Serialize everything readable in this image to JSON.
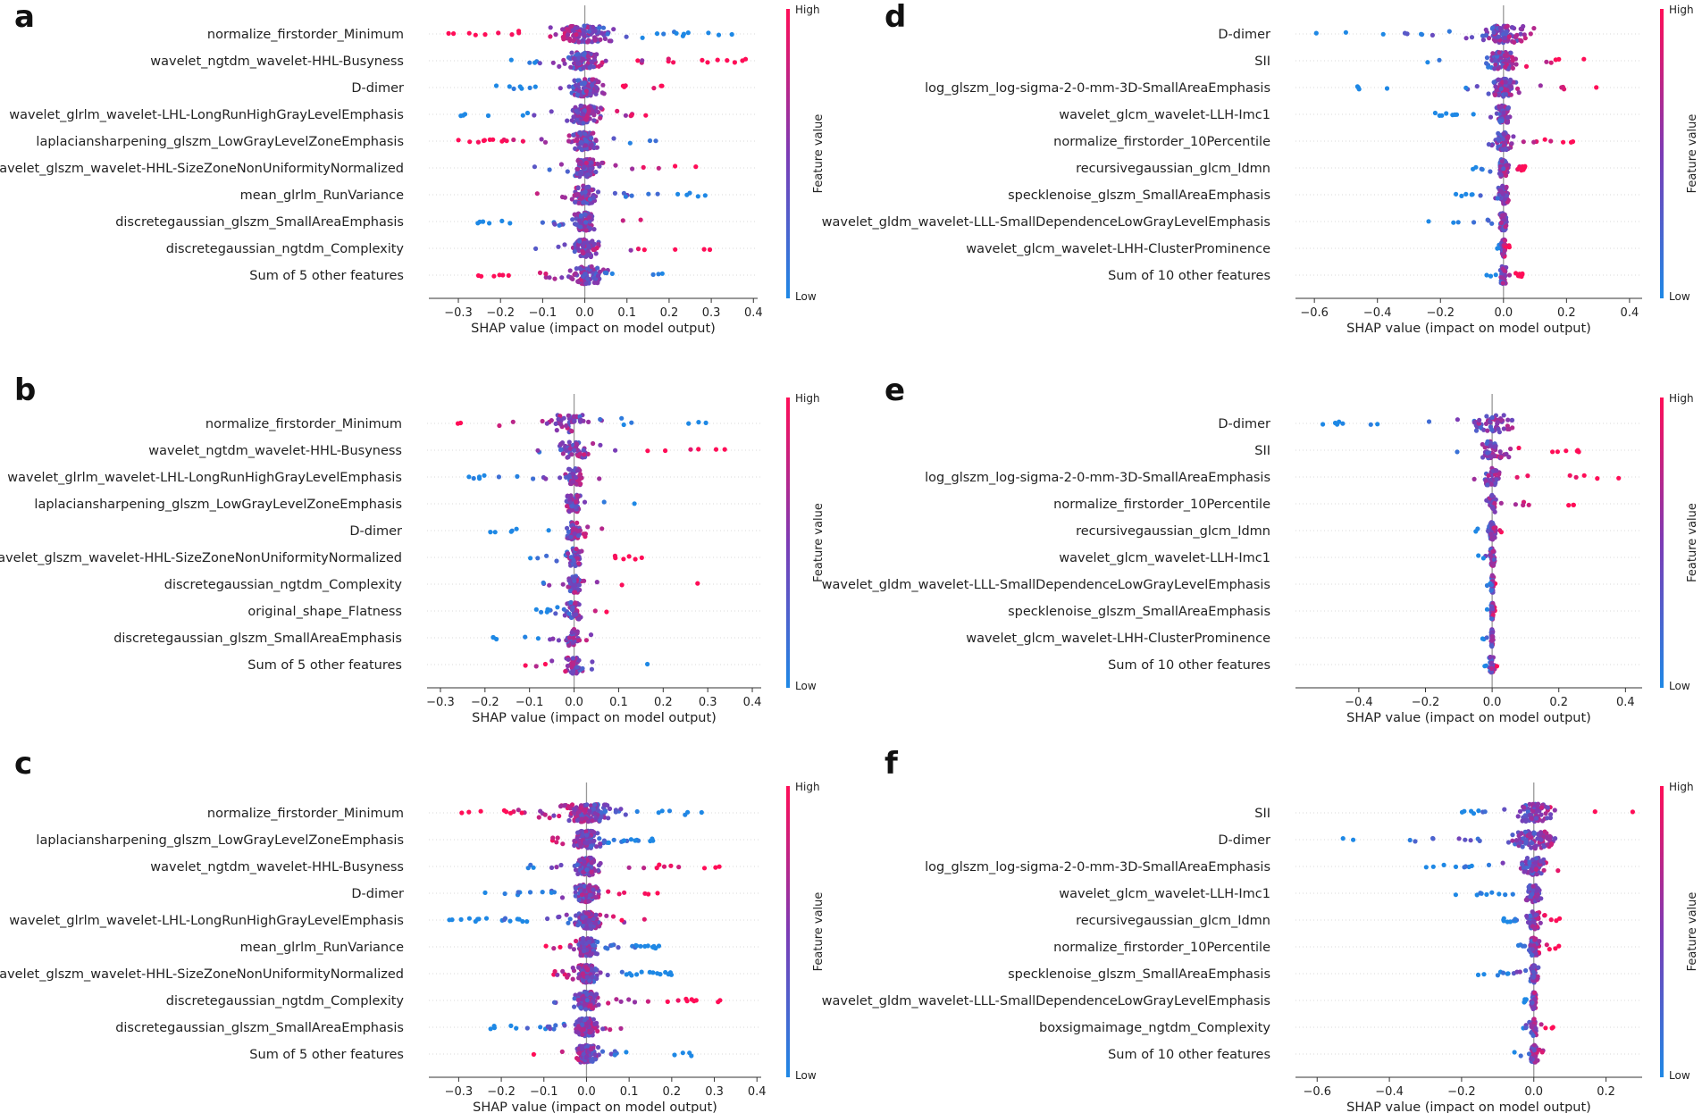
{
  "colors": {
    "high": "#ff0d57",
    "low": "#1e88e5",
    "zero_line": "#999999",
    "axis": "#333333",
    "grid": "#cccccc"
  },
  "colorbar": {
    "high_label": "High",
    "low_label": "Low",
    "title": "Feature value"
  },
  "chart_data": [
    {
      "panel": "a",
      "type": "scatter",
      "xlabel": "SHAP value (impact on model output)",
      "xlim": [
        -0.37,
        0.41
      ],
      "xticks": [
        -0.3,
        -0.2,
        -0.1,
        0.0,
        0.1,
        0.2,
        0.3,
        0.4
      ],
      "tick_labels": [
        "−0.3",
        "−0.2",
        "−0.1",
        "0.0",
        "0.1",
        "0.2",
        "0.3",
        "0.4"
      ],
      "features": [
        {
          "name": "normalize_firstorder_Minimum",
          "min": -0.33,
          "max": 0.36,
          "low_side": "pos",
          "density": 130,
          "spread": 0.18
        },
        {
          "name": "wavelet_ngtdm_wavelet-HHL-Busyness",
          "min": -0.18,
          "max": 0.39,
          "low_side": "neg",
          "density": 110,
          "spread": 0.12
        },
        {
          "name": "D-dimer",
          "min": -0.23,
          "max": 0.22,
          "low_side": "neg",
          "density": 110,
          "spread": 0.1
        },
        {
          "name": "wavelet_glrlm_wavelet-LHL-LongRunHighGrayLevelEmphasis",
          "min": -0.33,
          "max": 0.17,
          "low_side": "neg",
          "density": 110,
          "spread": 0.1
        },
        {
          "name": "laplaciansharpening_glszm_LowGrayLevelZoneEmphasis",
          "min": -0.32,
          "max": 0.19,
          "low_side": "pos",
          "density": 110,
          "spread": 0.08
        },
        {
          "name": "wavelet_glszm_wavelet-HHL-SizeZoneNonUniformityNormalized",
          "min": -0.13,
          "max": 0.3,
          "low_side": "neg",
          "density": 110,
          "spread": 0.08
        },
        {
          "name": "mean_glrlm_RunVariance",
          "min": -0.13,
          "max": 0.3,
          "low_side": "pos",
          "density": 100,
          "spread": 0.08
        },
        {
          "name": "discretegaussian_glszm_SmallAreaEmphasis",
          "min": -0.26,
          "max": 0.15,
          "low_side": "neg",
          "density": 100,
          "spread": 0.08
        },
        {
          "name": "discretegaussian_ngtdm_Complexity",
          "min": -0.13,
          "max": 0.3,
          "low_side": "neg",
          "density": 100,
          "spread": 0.08
        },
        {
          "name": "Sum of 5 other features",
          "min": -0.3,
          "max": 0.24,
          "low_side": "pos",
          "density": 110,
          "spread": 0.1
        }
      ]
    },
    {
      "panel": "b",
      "type": "scatter",
      "xlabel": "SHAP value (impact on model output)",
      "xlim": [
        -0.33,
        0.42
      ],
      "xticks": [
        -0.3,
        -0.2,
        -0.1,
        0.0,
        0.1,
        0.2,
        0.3,
        0.4
      ],
      "tick_labels": [
        "−0.3",
        "−0.2",
        "−0.1",
        "0.0",
        "0.1",
        "0.2",
        "0.3",
        "0.4"
      ],
      "features": [
        {
          "name": "normalize_firstorder_Minimum",
          "min": -0.3,
          "max": 0.3,
          "low_side": "pos",
          "density": 55,
          "spread": 0.18
        },
        {
          "name": "wavelet_ngtdm_wavelet-HHL-Busyness",
          "min": -0.13,
          "max": 0.4,
          "low_side": "neg",
          "density": 55,
          "spread": 0.1
        },
        {
          "name": "wavelet_glrlm_wavelet-LHL-LongRunHighGrayLevelEmphasis",
          "min": -0.3,
          "max": 0.08,
          "low_side": "neg",
          "density": 55,
          "spread": 0.06
        },
        {
          "name": "laplaciansharpening_glszm_LowGrayLevelZoneEmphasis",
          "min": -0.11,
          "max": 0.17,
          "low_side": "pos",
          "density": 55,
          "spread": 0.06
        },
        {
          "name": "D-dimer",
          "min": -0.19,
          "max": 0.12,
          "low_side": "neg",
          "density": 55,
          "spread": 0.06
        },
        {
          "name": "wavelet_glszm_wavelet-HHL-SizeZoneNonUniformityNormalized",
          "min": -0.11,
          "max": 0.16,
          "low_side": "neg",
          "density": 55,
          "spread": 0.05
        },
        {
          "name": "discretegaussian_ngtdm_Complexity",
          "min": -0.1,
          "max": 0.3,
          "low_side": "neg",
          "density": 55,
          "spread": 0.05
        },
        {
          "name": "original_shape_Flatness",
          "min": -0.1,
          "max": 0.08,
          "low_side": "neg",
          "density": 50,
          "spread": 0.05
        },
        {
          "name": "discretegaussian_glszm_SmallAreaEmphasis",
          "min": -0.21,
          "max": 0.07,
          "low_side": "neg",
          "density": 50,
          "spread": 0.04
        },
        {
          "name": "Sum of 5 other features",
          "min": -0.11,
          "max": 0.2,
          "low_side": "pos",
          "density": 55,
          "spread": 0.06
        }
      ]
    },
    {
      "panel": "c",
      "type": "scatter",
      "xlabel": "SHAP value (impact on model output)",
      "xlim": [
        -0.37,
        0.41
      ],
      "xticks": [
        -0.3,
        -0.2,
        -0.1,
        0.0,
        0.1,
        0.2,
        0.3,
        0.4
      ],
      "tick_labels": [
        "−0.3",
        "−0.2",
        "−0.1",
        "0.0",
        "0.1",
        "0.2",
        "0.3",
        "0.4"
      ],
      "features": [
        {
          "name": "normalize_firstorder_Minimum",
          "min": -0.33,
          "max": 0.28,
          "low_side": "pos",
          "density": 150,
          "spread": 0.18
        },
        {
          "name": "laplaciansharpening_glszm_LowGrayLevelZoneEmphasis",
          "min": -0.13,
          "max": 0.16,
          "low_side": "pos",
          "density": 140,
          "spread": 0.08
        },
        {
          "name": "wavelet_ngtdm_wavelet-HHL-Busyness",
          "min": -0.18,
          "max": 0.37,
          "low_side": "neg",
          "density": 140,
          "spread": 0.08
        },
        {
          "name": "D-dimer",
          "min": -0.25,
          "max": 0.17,
          "low_side": "neg",
          "density": 140,
          "spread": 0.08
        },
        {
          "name": "wavelet_glrlm_wavelet-LHL-LongRunHighGrayLevelEmphasis",
          "min": -0.33,
          "max": 0.16,
          "low_side": "neg",
          "density": 140,
          "spread": 0.08
        },
        {
          "name": "mean_glrlm_RunVariance",
          "min": -0.1,
          "max": 0.19,
          "low_side": "pos",
          "density": 140,
          "spread": 0.07
        },
        {
          "name": "wavelet_glszm_wavelet-HHL-SizeZoneNonUniformityNormalized",
          "min": -0.11,
          "max": 0.2,
          "low_side": "pos",
          "density": 140,
          "spread": 0.07
        },
        {
          "name": "discretegaussian_ngtdm_Complexity",
          "min": -0.1,
          "max": 0.35,
          "low_side": "neg",
          "density": 140,
          "spread": 0.07
        },
        {
          "name": "discretegaussian_glszm_SmallAreaEmphasis",
          "min": -0.24,
          "max": 0.1,
          "low_side": "neg",
          "density": 140,
          "spread": 0.07
        },
        {
          "name": "Sum of 5 other features",
          "min": -0.2,
          "max": 0.25,
          "low_side": "pos",
          "density": 140,
          "spread": 0.07
        }
      ]
    },
    {
      "panel": "d",
      "type": "scatter",
      "xlabel": "SHAP value (impact on model output)",
      "xlim": [
        -0.66,
        0.44
      ],
      "xticks": [
        -0.6,
        -0.4,
        -0.2,
        0.0,
        0.2,
        0.4
      ],
      "tick_labels": [
        "−0.6",
        "−0.4",
        "−0.2",
        "0.0",
        "0.2",
        "0.4"
      ],
      "features": [
        {
          "name": "D-dimer",
          "min": -0.61,
          "max": 0.1,
          "low_side": "neg",
          "density": 90,
          "spread": 0.2
        },
        {
          "name": "SII",
          "min": -0.27,
          "max": 0.28,
          "low_side": "neg",
          "density": 90,
          "spread": 0.14
        },
        {
          "name": "log_glszm_log-sigma-2-0-mm-3D-SmallAreaEmphasis",
          "min": -0.49,
          "max": 0.4,
          "low_side": "neg",
          "density": 90,
          "spread": 0.1
        },
        {
          "name": "wavelet_glcm_wavelet-LLH-Imc1",
          "min": -0.22,
          "max": 0.02,
          "low_side": "neg",
          "density": 80,
          "spread": 0.06
        },
        {
          "name": "normalize_firstorder_10Percentile",
          "min": -0.05,
          "max": 0.25,
          "low_side": "neg",
          "density": 80,
          "spread": 0.06
        },
        {
          "name": "recursivegaussian_glcm_Idmn",
          "min": -0.1,
          "max": 0.08,
          "low_side": "neg",
          "density": 80,
          "spread": 0.05
        },
        {
          "name": "specklenoise_glszm_SmallAreaEmphasis",
          "min": -0.16,
          "max": 0.02,
          "low_side": "neg",
          "density": 70,
          "spread": 0.04
        },
        {
          "name": "wavelet_gldm_wavelet-LLL-SmallDependenceLowGrayLevelEmphasis",
          "min": -0.24,
          "max": 0.01,
          "low_side": "neg",
          "density": 70,
          "spread": 0.03
        },
        {
          "name": "wavelet_glcm_wavelet-LHH-ClusterProminence",
          "min": -0.02,
          "max": 0.02,
          "low_side": "neg",
          "density": 60,
          "spread": 0.02
        },
        {
          "name": "Sum of 10 other features",
          "min": -0.06,
          "max": 0.06,
          "low_side": "neg",
          "density": 70,
          "spread": 0.03
        }
      ]
    },
    {
      "panel": "e",
      "type": "scatter",
      "xlabel": "SHAP value (impact on model output)",
      "xlim": [
        -0.59,
        0.45
      ],
      "xticks": [
        -0.4,
        -0.2,
        0.0,
        0.2,
        0.4
      ],
      "tick_labels": [
        "−0.4",
        "−0.2",
        "0.0",
        "0.2",
        "0.4"
      ],
      "features": [
        {
          "name": "D-dimer",
          "min": -0.54,
          "max": 0.1,
          "low_side": "neg",
          "density": 60,
          "spread": 0.18
        },
        {
          "name": "SII",
          "min": -0.18,
          "max": 0.27,
          "low_side": "neg",
          "density": 60,
          "spread": 0.12
        },
        {
          "name": "log_glszm_log-sigma-2-0-mm-3D-SmallAreaEmphasis",
          "min": -0.14,
          "max": 0.42,
          "low_side": "neg",
          "density": 55,
          "spread": 0.06
        },
        {
          "name": "normalize_firstorder_10Percentile",
          "min": -0.04,
          "max": 0.25,
          "low_side": "neg",
          "density": 50,
          "spread": 0.04
        },
        {
          "name": "recursivegaussian_glcm_Idmn",
          "min": -0.06,
          "max": 0.05,
          "low_side": "neg",
          "density": 50,
          "spread": 0.03
        },
        {
          "name": "wavelet_glcm_wavelet-LLH-Imc1",
          "min": -0.07,
          "max": 0.01,
          "low_side": "neg",
          "density": 45,
          "spread": 0.02
        },
        {
          "name": "wavelet_gldm_wavelet-LLL-SmallDependenceLowGrayLevelEmphasis",
          "min": -0.02,
          "max": 0.01,
          "low_side": "neg",
          "density": 40,
          "spread": 0.01
        },
        {
          "name": "specklenoise_glszm_SmallAreaEmphasis",
          "min": -0.02,
          "max": 0.01,
          "low_side": "neg",
          "density": 40,
          "spread": 0.01
        },
        {
          "name": "wavelet_glcm_wavelet-LHH-ClusterProminence",
          "min": -0.03,
          "max": 0.01,
          "low_side": "neg",
          "density": 40,
          "spread": 0.01
        },
        {
          "name": "Sum of 10 other features",
          "min": -0.03,
          "max": 0.02,
          "low_side": "neg",
          "density": 40,
          "spread": 0.02
        }
      ]
    },
    {
      "panel": "f",
      "type": "scatter",
      "xlabel": "SHAP value (impact on model output)",
      "xlim": [
        -0.66,
        0.3
      ],
      "xticks": [
        -0.6,
        -0.4,
        -0.2,
        0.0,
        0.2
      ],
      "tick_labels": [
        "−0.6",
        "−0.4",
        "−0.2",
        "0.0",
        "0.2"
      ],
      "features": [
        {
          "name": "SII",
          "min": -0.27,
          "max": 0.28,
          "low_side": "neg",
          "density": 90,
          "spread": 0.14
        },
        {
          "name": "D-dimer",
          "min": -0.6,
          "max": 0.1,
          "low_side": "neg",
          "density": 90,
          "spread": 0.18
        },
        {
          "name": "log_glszm_log-sigma-2-0-mm-3D-SmallAreaEmphasis",
          "min": -0.3,
          "max": 0.08,
          "low_side": "neg",
          "density": 90,
          "spread": 0.1
        },
        {
          "name": "wavelet_glcm_wavelet-LLH-Imc1",
          "min": -0.22,
          "max": 0.02,
          "low_side": "neg",
          "density": 80,
          "spread": 0.06
        },
        {
          "name": "recursivegaussian_glcm_Idmn",
          "min": -0.09,
          "max": 0.08,
          "low_side": "neg",
          "density": 70,
          "spread": 0.05
        },
        {
          "name": "normalize_firstorder_10Percentile",
          "min": -0.05,
          "max": 0.07,
          "low_side": "neg",
          "density": 70,
          "spread": 0.04
        },
        {
          "name": "specklenoise_glszm_SmallAreaEmphasis",
          "min": -0.16,
          "max": 0.02,
          "low_side": "neg",
          "density": 60,
          "spread": 0.03
        },
        {
          "name": "wavelet_gldm_wavelet-LLL-SmallDependenceLowGrayLevelEmphasis",
          "min": -0.03,
          "max": 0.01,
          "low_side": "neg",
          "density": 50,
          "spread": 0.02
        },
        {
          "name": "boxsigmaimage_ngtdm_Complexity",
          "min": -0.03,
          "max": 0.06,
          "low_side": "neg",
          "density": 50,
          "spread": 0.02
        },
        {
          "name": "Sum of 10 other features",
          "min": -0.06,
          "max": 0.05,
          "low_side": "neg",
          "density": 60,
          "spread": 0.03
        }
      ]
    }
  ]
}
